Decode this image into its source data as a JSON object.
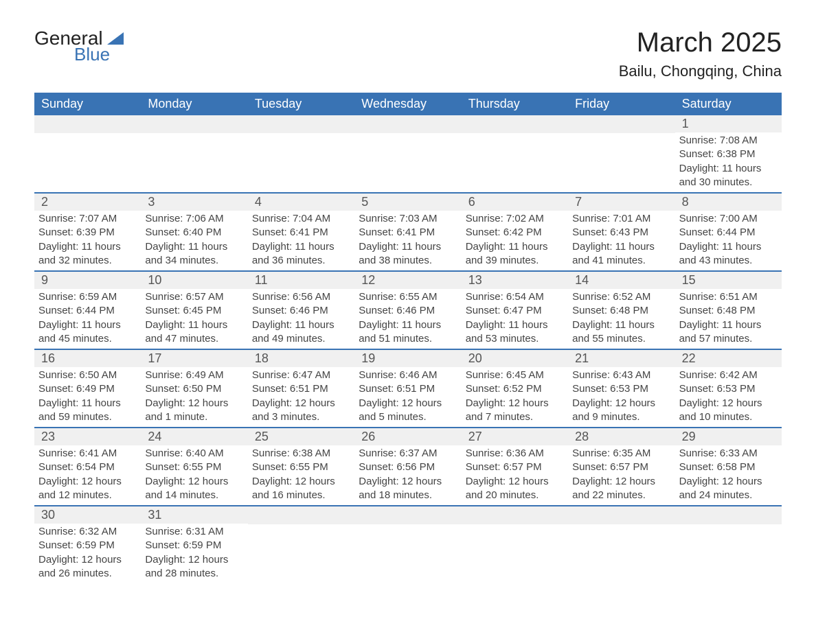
{
  "brand": {
    "name_part1": "General",
    "name_part2": "Blue",
    "text_color": "#222222",
    "accent_color": "#3973b4"
  },
  "title": "March 2025",
  "subtitle": "Bailu, Chongqing, China",
  "colors": {
    "header_bg": "#3973b4",
    "header_text": "#ffffff",
    "daynum_bg": "#f0f0f0",
    "body_text": "#444444",
    "row_divider": "#3973b4",
    "page_bg": "#ffffff"
  },
  "typography": {
    "title_fontsize": 40,
    "subtitle_fontsize": 22,
    "dayheader_fontsize": 18,
    "daynum_fontsize": 18,
    "detail_fontsize": 15
  },
  "day_headers": [
    "Sunday",
    "Monday",
    "Tuesday",
    "Wednesday",
    "Thursday",
    "Friday",
    "Saturday"
  ],
  "weeks": [
    [
      null,
      null,
      null,
      null,
      null,
      null,
      {
        "n": "1",
        "sunrise": "7:08 AM",
        "sunset": "6:38 PM",
        "daylight": "11 hours and 30 minutes."
      }
    ],
    [
      {
        "n": "2",
        "sunrise": "7:07 AM",
        "sunset": "6:39 PM",
        "daylight": "11 hours and 32 minutes."
      },
      {
        "n": "3",
        "sunrise": "7:06 AM",
        "sunset": "6:40 PM",
        "daylight": "11 hours and 34 minutes."
      },
      {
        "n": "4",
        "sunrise": "7:04 AM",
        "sunset": "6:41 PM",
        "daylight": "11 hours and 36 minutes."
      },
      {
        "n": "5",
        "sunrise": "7:03 AM",
        "sunset": "6:41 PM",
        "daylight": "11 hours and 38 minutes."
      },
      {
        "n": "6",
        "sunrise": "7:02 AM",
        "sunset": "6:42 PM",
        "daylight": "11 hours and 39 minutes."
      },
      {
        "n": "7",
        "sunrise": "7:01 AM",
        "sunset": "6:43 PM",
        "daylight": "11 hours and 41 minutes."
      },
      {
        "n": "8",
        "sunrise": "7:00 AM",
        "sunset": "6:44 PM",
        "daylight": "11 hours and 43 minutes."
      }
    ],
    [
      {
        "n": "9",
        "sunrise": "6:59 AM",
        "sunset": "6:44 PM",
        "daylight": "11 hours and 45 minutes."
      },
      {
        "n": "10",
        "sunrise": "6:57 AM",
        "sunset": "6:45 PM",
        "daylight": "11 hours and 47 minutes."
      },
      {
        "n": "11",
        "sunrise": "6:56 AM",
        "sunset": "6:46 PM",
        "daylight": "11 hours and 49 minutes."
      },
      {
        "n": "12",
        "sunrise": "6:55 AM",
        "sunset": "6:46 PM",
        "daylight": "11 hours and 51 minutes."
      },
      {
        "n": "13",
        "sunrise": "6:54 AM",
        "sunset": "6:47 PM",
        "daylight": "11 hours and 53 minutes."
      },
      {
        "n": "14",
        "sunrise": "6:52 AM",
        "sunset": "6:48 PM",
        "daylight": "11 hours and 55 minutes."
      },
      {
        "n": "15",
        "sunrise": "6:51 AM",
        "sunset": "6:48 PM",
        "daylight": "11 hours and 57 minutes."
      }
    ],
    [
      {
        "n": "16",
        "sunrise": "6:50 AM",
        "sunset": "6:49 PM",
        "daylight": "11 hours and 59 minutes."
      },
      {
        "n": "17",
        "sunrise": "6:49 AM",
        "sunset": "6:50 PM",
        "daylight": "12 hours and 1 minute."
      },
      {
        "n": "18",
        "sunrise": "6:47 AM",
        "sunset": "6:51 PM",
        "daylight": "12 hours and 3 minutes."
      },
      {
        "n": "19",
        "sunrise": "6:46 AM",
        "sunset": "6:51 PM",
        "daylight": "12 hours and 5 minutes."
      },
      {
        "n": "20",
        "sunrise": "6:45 AM",
        "sunset": "6:52 PM",
        "daylight": "12 hours and 7 minutes."
      },
      {
        "n": "21",
        "sunrise": "6:43 AM",
        "sunset": "6:53 PM",
        "daylight": "12 hours and 9 minutes."
      },
      {
        "n": "22",
        "sunrise": "6:42 AM",
        "sunset": "6:53 PM",
        "daylight": "12 hours and 10 minutes."
      }
    ],
    [
      {
        "n": "23",
        "sunrise": "6:41 AM",
        "sunset": "6:54 PM",
        "daylight": "12 hours and 12 minutes."
      },
      {
        "n": "24",
        "sunrise": "6:40 AM",
        "sunset": "6:55 PM",
        "daylight": "12 hours and 14 minutes."
      },
      {
        "n": "25",
        "sunrise": "6:38 AM",
        "sunset": "6:55 PM",
        "daylight": "12 hours and 16 minutes."
      },
      {
        "n": "26",
        "sunrise": "6:37 AM",
        "sunset": "6:56 PM",
        "daylight": "12 hours and 18 minutes."
      },
      {
        "n": "27",
        "sunrise": "6:36 AM",
        "sunset": "6:57 PM",
        "daylight": "12 hours and 20 minutes."
      },
      {
        "n": "28",
        "sunrise": "6:35 AM",
        "sunset": "6:57 PM",
        "daylight": "12 hours and 22 minutes."
      },
      {
        "n": "29",
        "sunrise": "6:33 AM",
        "sunset": "6:58 PM",
        "daylight": "12 hours and 24 minutes."
      }
    ],
    [
      {
        "n": "30",
        "sunrise": "6:32 AM",
        "sunset": "6:59 PM",
        "daylight": "12 hours and 26 minutes."
      },
      {
        "n": "31",
        "sunrise": "6:31 AM",
        "sunset": "6:59 PM",
        "daylight": "12 hours and 28 minutes."
      },
      null,
      null,
      null,
      null,
      null
    ]
  ],
  "labels": {
    "sunrise_prefix": "Sunrise: ",
    "sunset_prefix": "Sunset: ",
    "daylight_prefix": "Daylight: "
  }
}
